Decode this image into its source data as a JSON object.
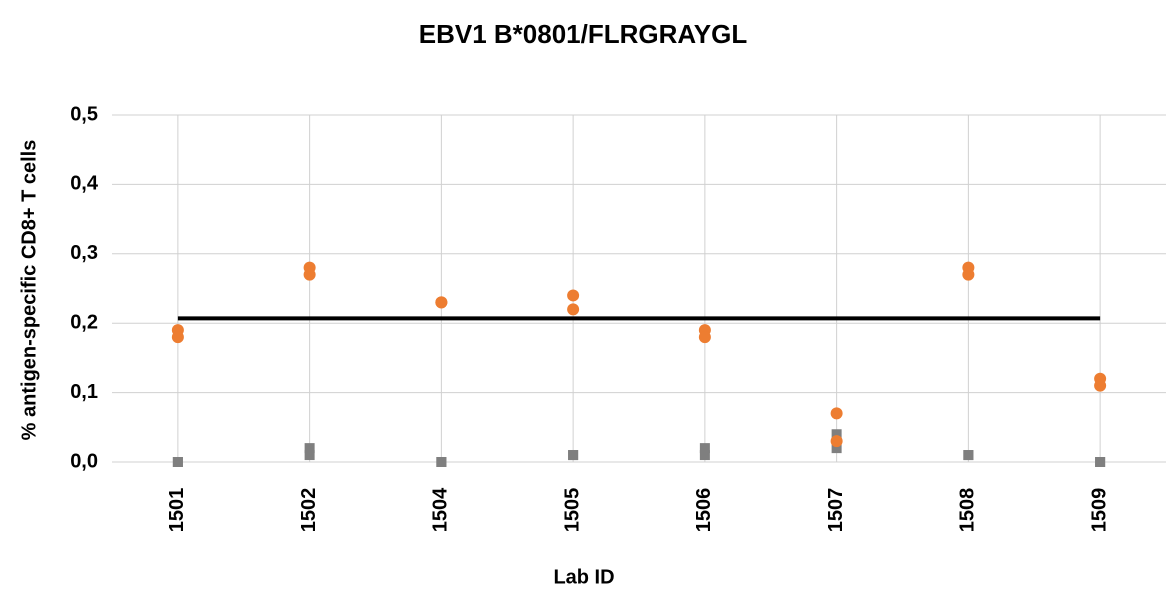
{
  "chart_data": {
    "type": "scatter",
    "title": "EBV1 B*0801/FLRGRAYGL",
    "x_label": "Lab ID",
    "y_label": "% antigen-specific CD8+ T cells",
    "categories": [
      "1501",
      "1502",
      "1504",
      "1505",
      "1506",
      "1507",
      "1508",
      "1509"
    ],
    "series": [
      {
        "color": "#ed7d31",
        "marker": "circle",
        "values": [
          0.19,
          0.28,
          0.23,
          0.24,
          0.19,
          0.07,
          0.28,
          0.12
        ]
      },
      {
        "color": "#ed7d31",
        "marker": "circle",
        "values": [
          0.18,
          0.27,
          0.23,
          0.22,
          0.18,
          0.03,
          0.27,
          0.11
        ]
      },
      {
        "color": "#7f7f7f",
        "marker": "square",
        "values": [
          0,
          0.02,
          0,
          0.01,
          0.02,
          0.04,
          0.01,
          0
        ]
      },
      {
        "color": "#7f7f7f",
        "marker": "square",
        "values": [
          0,
          0.01,
          0,
          0.01,
          0.01,
          0.02,
          0.01,
          0
        ]
      }
    ],
    "reference_line": {
      "value": 0.207,
      "color": "#000000"
    },
    "ylim": [
      0,
      0.5
    ],
    "yticks": [
      {
        "value": 0,
        "label": "0,0"
      },
      {
        "value": 0.1,
        "label": "0,1"
      },
      {
        "value": 0.2,
        "label": "0,2"
      },
      {
        "value": 0.3,
        "label": "0,3"
      },
      {
        "value": 0.4,
        "label": "0,4"
      },
      {
        "value": 0.5,
        "label": "0,5"
      }
    ],
    "grid": true
  }
}
